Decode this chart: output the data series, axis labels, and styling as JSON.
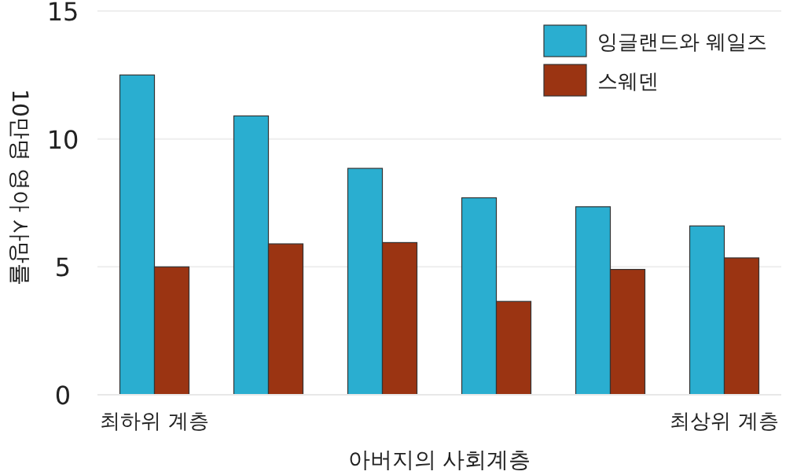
{
  "chart_data": {
    "type": "bar",
    "xlabel": "아버지의 사회계층",
    "ylabel": "10만명 영아 사망률",
    "categories": [
      "최하위 계층",
      null,
      null,
      null,
      null,
      "최상위 계층"
    ],
    "series": [
      {
        "name": "잉글랜드와 웨일즈",
        "color": "#2aaed0",
        "values": [
          12.5,
          10.9,
          8.85,
          7.7,
          7.35,
          6.6
        ]
      },
      {
        "name": "스웨덴",
        "color": "#9b3412",
        "values": [
          5.0,
          5.9,
          5.95,
          3.65,
          4.9,
          5.35
        ]
      }
    ],
    "ylim": [
      0,
      15
    ],
    "yticks": [
      0,
      5,
      10,
      15
    ],
    "grid": "y",
    "legend": "top right"
  }
}
